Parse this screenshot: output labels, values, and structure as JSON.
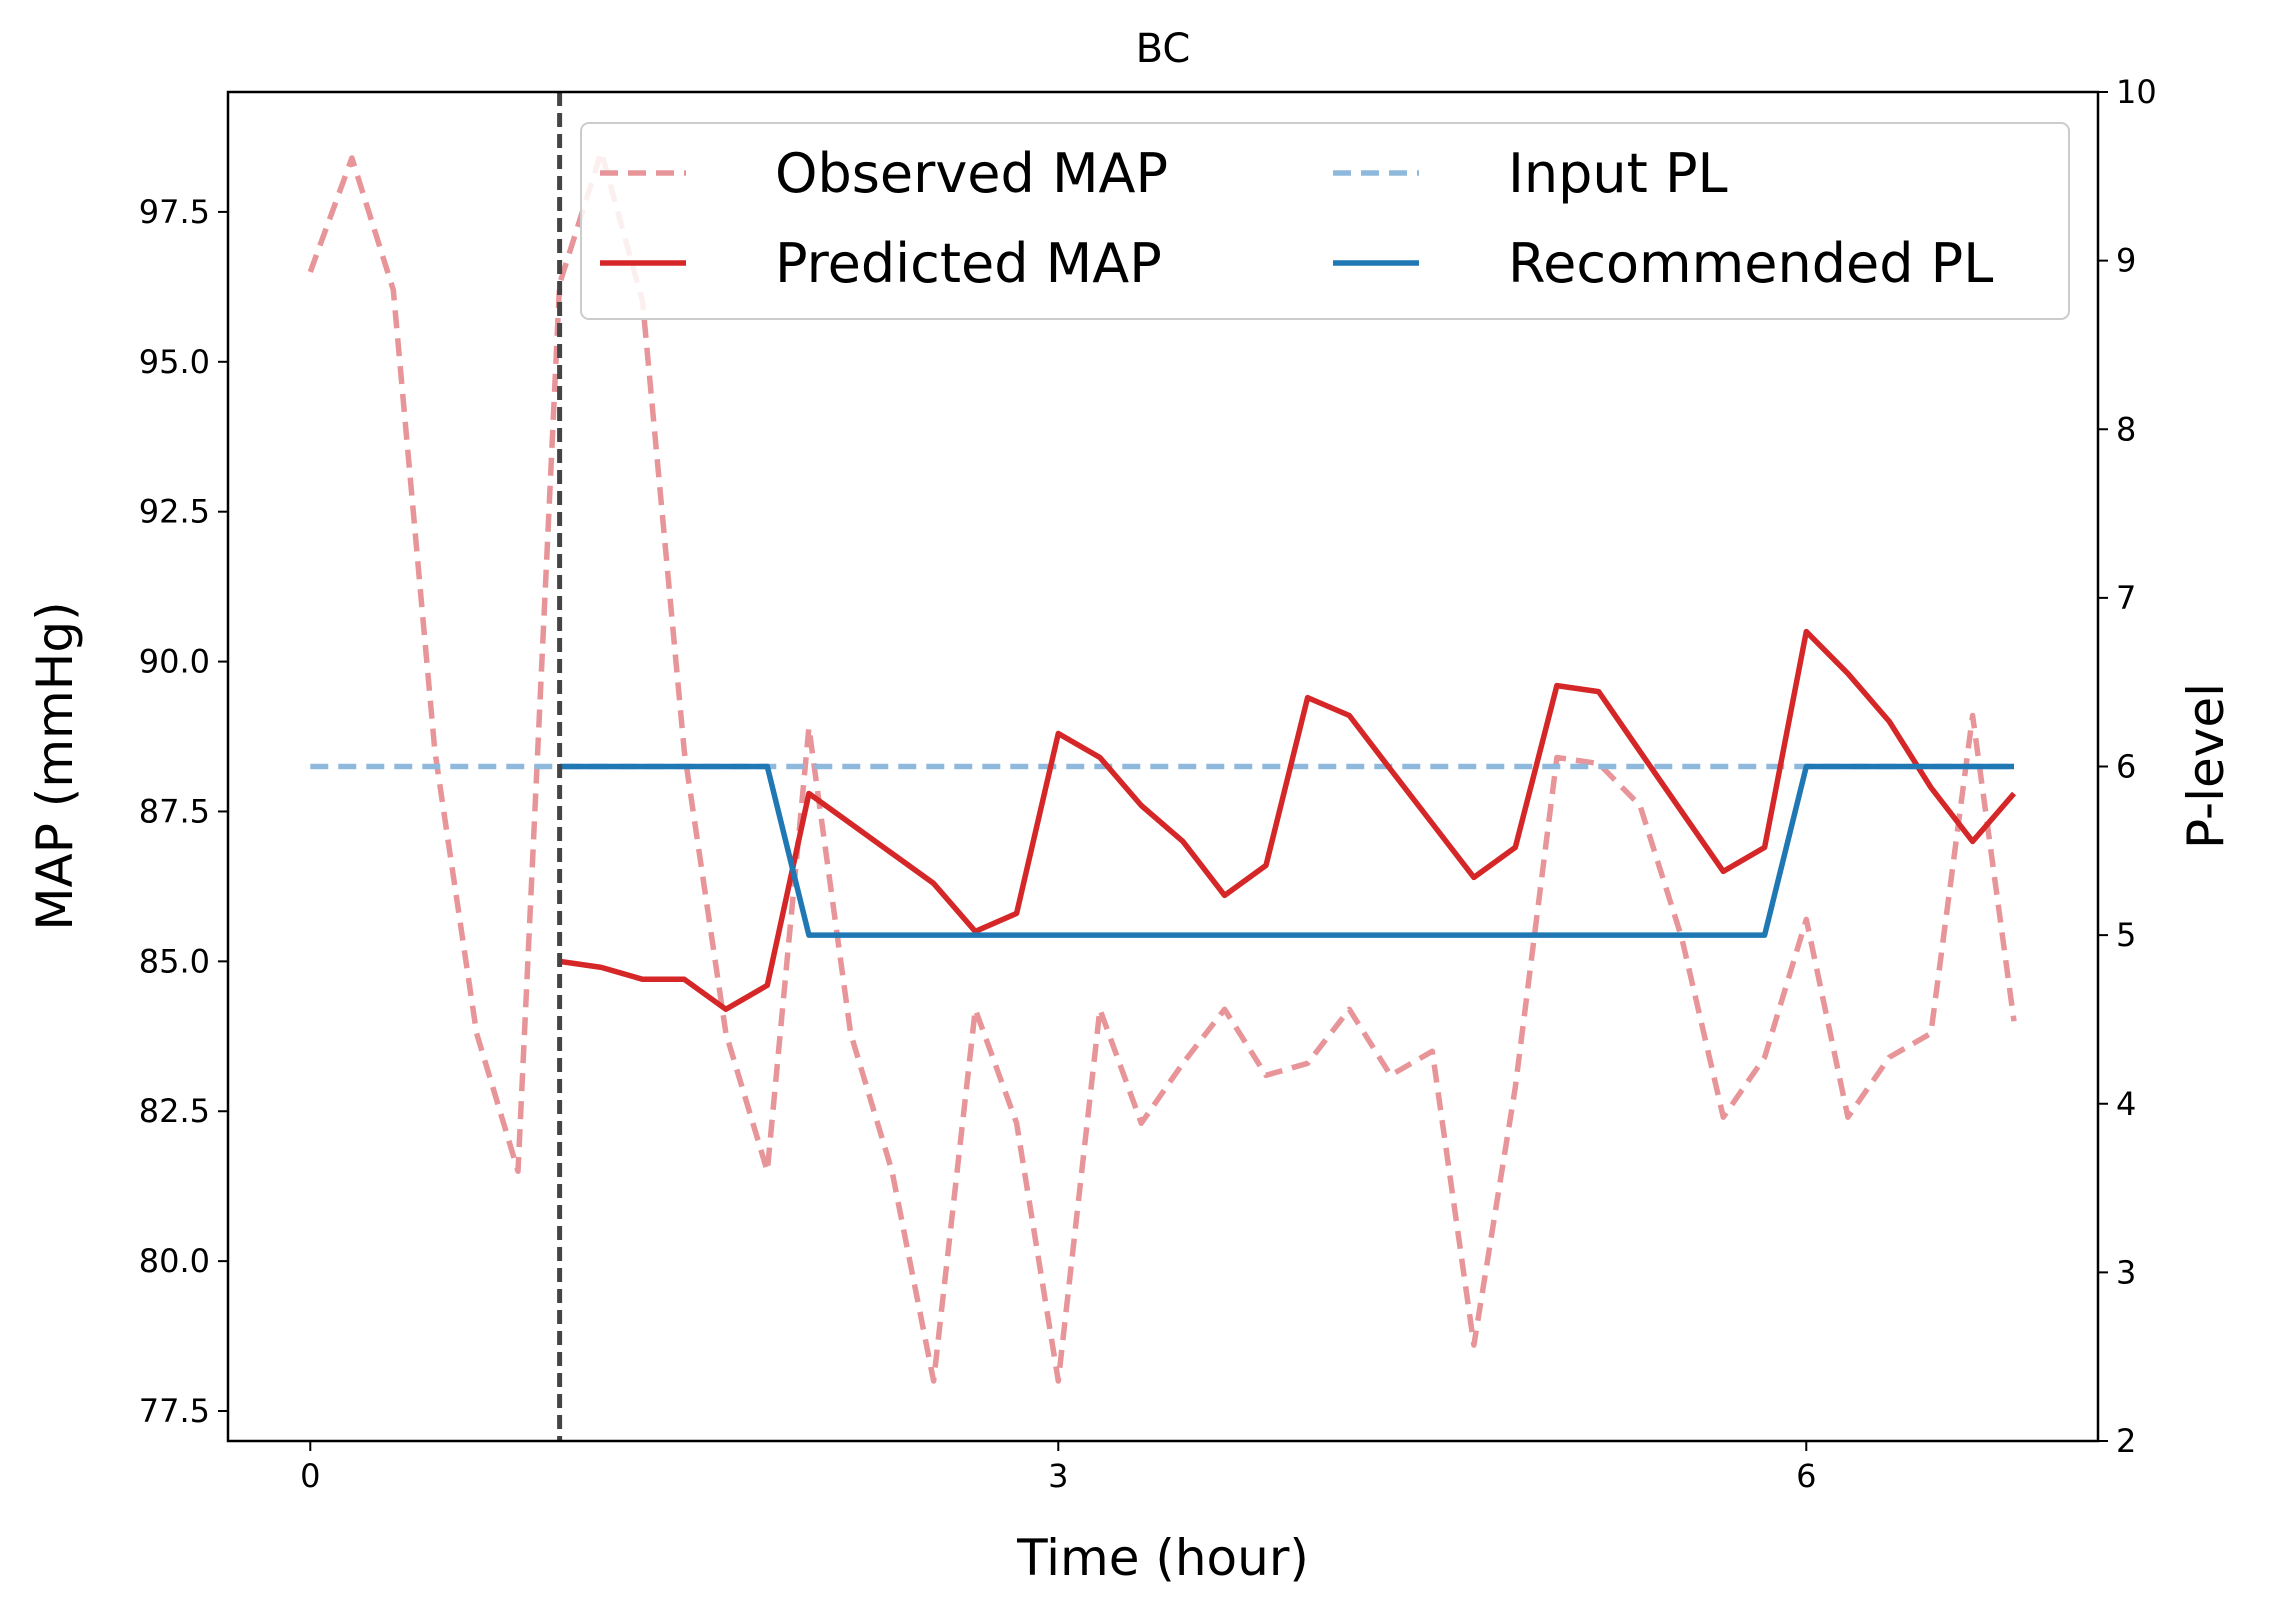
{
  "chart_data": {
    "type": "line",
    "title": "BC",
    "xlabel": "Time (hour)",
    "ylabel": "MAP (mmHg)",
    "y2label": "P-level",
    "xlim": [
      -0.33,
      7.17
    ],
    "ylim": [
      77.0,
      99.5
    ],
    "y2lim": [
      2,
      10
    ],
    "xticks": [
      0,
      3,
      6
    ],
    "yticks": [
      77.5,
      80.0,
      82.5,
      85.0,
      87.5,
      90.0,
      92.5,
      95.0,
      97.5
    ],
    "y2ticks": [
      2,
      3,
      4,
      5,
      6,
      7,
      8,
      9,
      10
    ],
    "vline_x": 1.0,
    "legend_position": "upper-right",
    "colors": {
      "observed_map": "#e8959a",
      "predicted_map": "#d62728",
      "input_pl": "#8fb9dc",
      "recommended_pl": "#1f77b4",
      "vline": "#444444"
    },
    "series": [
      {
        "name": "Observed MAP",
        "axis": "left",
        "style": "dashed",
        "x": [
          0,
          0.167,
          0.333,
          0.5,
          0.667,
          0.833,
          1.0,
          1.167,
          1.333,
          1.5,
          1.667,
          1.833,
          2.0,
          2.167,
          2.333,
          2.5,
          2.667,
          2.833,
          3.0,
          3.167,
          3.333,
          3.5,
          3.667,
          3.833,
          4.0,
          4.167,
          4.333,
          4.5,
          4.667,
          4.833,
          5.0,
          5.167,
          5.333,
          5.5,
          5.667,
          5.833,
          6.0,
          6.167,
          6.333,
          6.5,
          6.667,
          6.833
        ],
        "values": [
          96.5,
          98.4,
          96.2,
          88.5,
          83.8,
          81.5,
          96.3,
          98.5,
          96.0,
          88.5,
          83.8,
          81.5,
          88.9,
          83.8,
          81.5,
          78.0,
          84.2,
          82.3,
          78.0,
          84.2,
          82.3,
          83.3,
          84.2,
          83.1,
          83.3,
          84.2,
          83.1,
          83.5,
          78.6,
          82.9,
          88.4,
          88.3,
          87.6,
          85.4,
          82.4,
          83.4,
          85.7,
          82.4,
          83.4,
          83.8,
          89.1,
          84.0
        ]
      },
      {
        "name": "Predicted MAP",
        "axis": "left",
        "style": "solid",
        "x": [
          1.0,
          1.167,
          1.333,
          1.5,
          1.667,
          1.833,
          2.0,
          2.167,
          2.333,
          2.5,
          2.667,
          2.833,
          3.0,
          3.167,
          3.333,
          3.5,
          3.667,
          3.833,
          4.0,
          4.167,
          4.333,
          4.5,
          4.667,
          4.833,
          5.0,
          5.167,
          5.333,
          5.5,
          5.667,
          5.833,
          6.0,
          6.167,
          6.333,
          6.5,
          6.667,
          6.833
        ],
        "values": [
          85.0,
          84.9,
          84.7,
          84.7,
          84.2,
          84.6,
          87.8,
          87.3,
          86.8,
          86.3,
          85.5,
          85.8,
          88.8,
          88.4,
          87.6,
          87.0,
          86.1,
          86.6,
          89.4,
          89.1,
          88.2,
          87.3,
          86.4,
          86.9,
          89.6,
          89.5,
          88.5,
          87.5,
          86.5,
          86.9,
          90.5,
          89.8,
          89.0,
          87.9,
          87.0,
          87.8
        ]
      },
      {
        "name": "Input PL",
        "axis": "right",
        "style": "dashed",
        "x": [
          0,
          6.833
        ],
        "values": [
          6,
          6
        ]
      },
      {
        "name": "Recommended PL",
        "axis": "right",
        "style": "solid",
        "x": [
          1.0,
          1.833,
          2.0,
          5.833,
          6.0,
          6.833
        ],
        "values": [
          6,
          6,
          5,
          5,
          6,
          6
        ]
      }
    ]
  }
}
